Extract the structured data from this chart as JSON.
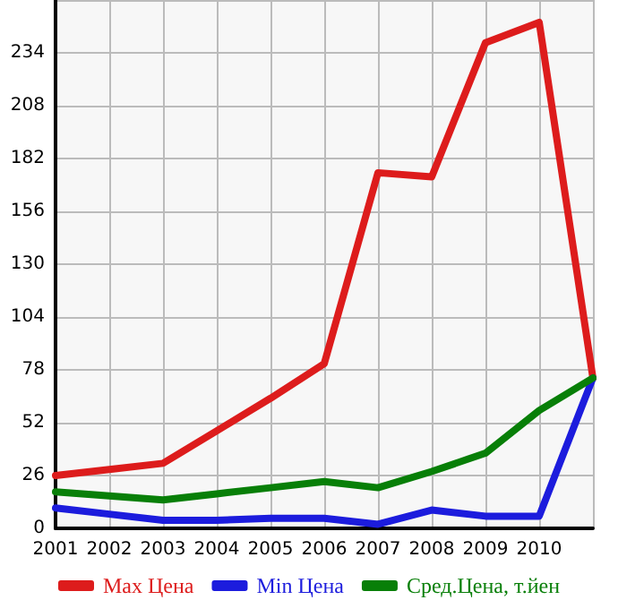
{
  "chart_data": {
    "type": "line",
    "categories": [
      "2001",
      "2002",
      "2003",
      "2004",
      "2005",
      "2006",
      "2007",
      "2008",
      "2009",
      "2010",
      null
    ],
    "series": [
      {
        "name": "Max Цена",
        "color": "#dd1c1c",
        "values": [
          26,
          29,
          32,
          48,
          64,
          81,
          175,
          173,
          239,
          249,
          74
        ]
      },
      {
        "name": "Min Цена",
        "color": "#1c1cdd",
        "values": [
          10,
          7,
          4,
          4,
          5,
          5,
          2,
          9,
          6,
          6,
          74
        ]
      },
      {
        "name": "Сред.Цена, т.йен",
        "color": "#087f08",
        "values": [
          18,
          16,
          14,
          17,
          20,
          23,
          20,
          28,
          37,
          58,
          74
        ]
      }
    ],
    "ylim": [
      0,
      260
    ],
    "yticks": [
      0,
      26,
      52,
      78,
      104,
      130,
      156,
      182,
      208,
      234,
      {
        "value": 260,
        "label": null
      }
    ],
    "grid": true,
    "legend": "bottom",
    "marker": "none",
    "line_style": "solid"
  }
}
